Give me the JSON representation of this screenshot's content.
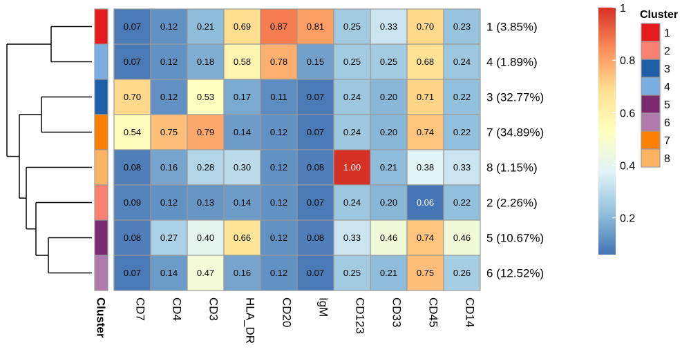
{
  "chart_data": {
    "type": "heatmap",
    "columns": [
      "CD7",
      "CD4",
      "CD3",
      "HLA_DR",
      "CD20",
      "IgM",
      "CD123",
      "CD33",
      "CD45",
      "CD14"
    ],
    "rows": [
      {
        "cluster": 1,
        "label": "1 (3.85%)",
        "values": [
          0.07,
          0.12,
          0.21,
          0.69,
          0.87,
          0.81,
          0.25,
          0.33,
          0.7,
          0.23
        ]
      },
      {
        "cluster": 4,
        "label": "4 (1.89%)",
        "values": [
          0.07,
          0.12,
          0.18,
          0.58,
          0.78,
          0.15,
          0.25,
          0.25,
          0.68,
          0.24
        ]
      },
      {
        "cluster": 3,
        "label": "3 (32.77%)",
        "values": [
          0.7,
          0.12,
          0.53,
          0.17,
          0.11,
          0.07,
          0.24,
          0.2,
          0.71,
          0.22
        ]
      },
      {
        "cluster": 7,
        "label": "7 (34.89%)",
        "values": [
          0.54,
          0.75,
          0.79,
          0.14,
          0.12,
          0.07,
          0.24,
          0.2,
          0.74,
          0.22
        ]
      },
      {
        "cluster": 8,
        "label": "8 (1.15%)",
        "values": [
          0.08,
          0.16,
          0.28,
          0.3,
          0.12,
          0.08,
          1.0,
          0.21,
          0.38,
          0.33
        ]
      },
      {
        "cluster": 2,
        "label": "2 (2.26%)",
        "values": [
          0.09,
          0.12,
          0.13,
          0.14,
          0.12,
          0.07,
          0.24,
          0.2,
          0.06,
          0.22
        ]
      },
      {
        "cluster": 5,
        "label": "5 (10.67%)",
        "values": [
          0.08,
          0.27,
          0.4,
          0.66,
          0.12,
          0.08,
          0.33,
          0.46,
          0.74,
          0.46
        ]
      },
      {
        "cluster": 6,
        "label": "6 (12.52%)",
        "values": [
          0.07,
          0.14,
          0.47,
          0.16,
          0.12,
          0.07,
          0.25,
          0.21,
          0.75,
          0.26
        ]
      }
    ],
    "annotation_label": "Cluster",
    "cluster_colors": {
      "1": "#e41a1c",
      "2": "#fa8072",
      "3": "#1f5fa8",
      "4": "#7aaee0",
      "5": "#7b2a6e",
      "6": "#b07aab",
      "7": "#ff7f00",
      "8": "#fdb462"
    },
    "color_scale": {
      "min": 0.06,
      "max": 1.0,
      "stops": [
        "#4575b4",
        "#91bfdb",
        "#e0f3f8",
        "#ffffbf",
        "#fee090",
        "#fc8d59",
        "#d73027"
      ],
      "ticks": [
        0.2,
        0.4,
        0.6,
        0.8,
        1
      ],
      "tick_labels": [
        "0.2",
        "0.4",
        "0.6",
        "0.8",
        "1"
      ]
    },
    "legend": {
      "title": "Cluster",
      "items": [
        "1",
        "2",
        "3",
        "4",
        "5",
        "6",
        "7",
        "8"
      ]
    },
    "dendrogram": "left"
  }
}
